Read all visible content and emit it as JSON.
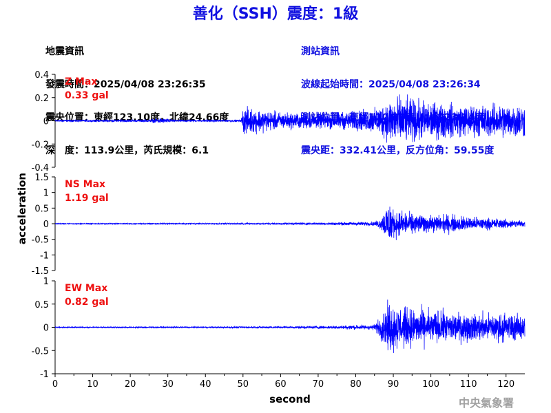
{
  "title": "善化（SSH）震度：1級",
  "colors": {
    "title": "#1010e0",
    "trace": "#0000ff",
    "peak_label": "#ee1111",
    "station_info": "#1010e0"
  },
  "quake_info": {
    "heading": "地震資訊",
    "time": "發震時間：2025/04/08 23:26:35",
    "location": "震央位置：東經123.10度，北緯24.66度",
    "depth_mag": "深　度：113.9公里，芮氏規模：6.1"
  },
  "station_info": {
    "heading": "測站資訊",
    "wave_start": "波線起始時間：2025/04/08 23:26:34",
    "location": "測站位置：東經120.29度，北緯23.14度",
    "distance": "震央距：332.41公里，反方位角：59.55度"
  },
  "agency": "中央氣象署",
  "chart_data": {
    "type": "line",
    "xlabel": "second",
    "ylabel": "acceleration",
    "xlim": [
      0,
      125
    ],
    "xticks": [
      0,
      10,
      20,
      30,
      40,
      50,
      60,
      70,
      80,
      90,
      100,
      110,
      120
    ],
    "panels": [
      {
        "name": "Z",
        "peak_label": "Z Max",
        "peak_value": "0.33 gal",
        "ylim": [
          -0.4,
          0.4
        ],
        "yticks": [
          -0.4,
          -0.2,
          0,
          0.2,
          0.4
        ],
        "ytick_labels": [
          "-0.4",
          "-0.2",
          "0",
          "0.2",
          "0.4"
        ],
        "envelope": [
          [
            0,
            0.012
          ],
          [
            10,
            0.012
          ],
          [
            25,
            0.015
          ],
          [
            28,
            0.035
          ],
          [
            30,
            0.025
          ],
          [
            32,
            0.012
          ],
          [
            49.5,
            0.012
          ],
          [
            50,
            0.16
          ],
          [
            55,
            0.13
          ],
          [
            60,
            0.1
          ],
          [
            70,
            0.09
          ],
          [
            80,
            0.11
          ],
          [
            85,
            0.14
          ],
          [
            88,
            0.22
          ],
          [
            90,
            0.3
          ],
          [
            95,
            0.25
          ],
          [
            100,
            0.22
          ],
          [
            110,
            0.18
          ],
          [
            120,
            0.2
          ],
          [
            125,
            0.2
          ]
        ]
      },
      {
        "name": "NS",
        "peak_label": "NS Max",
        "peak_value": "1.19 gal",
        "ylim": [
          -1.5,
          1.5
        ],
        "yticks": [
          -1.5,
          -1,
          -0.5,
          0,
          0.5,
          1,
          1.5
        ],
        "ytick_labels": [
          "-1.5",
          "-1",
          "-0.5",
          "0",
          "0.5",
          "1",
          "1.5"
        ],
        "envelope": [
          [
            0,
            0.02
          ],
          [
            40,
            0.025
          ],
          [
            60,
            0.04
          ],
          [
            75,
            0.06
          ],
          [
            85,
            0.09
          ],
          [
            87,
            0.3
          ],
          [
            88,
            0.8
          ],
          [
            89,
            1.1
          ],
          [
            90,
            0.6
          ],
          [
            95,
            0.45
          ],
          [
            100,
            0.35
          ],
          [
            105,
            0.4
          ],
          [
            110,
            0.3
          ],
          [
            120,
            0.2
          ],
          [
            125,
            0.15
          ]
        ]
      },
      {
        "name": "EW",
        "peak_label": "EW Max",
        "peak_value": "0.82 gal",
        "ylim": [
          -1,
          1
        ],
        "yticks": [
          -1,
          -0.5,
          0,
          0.5,
          1
        ],
        "ytick_labels": [
          "-1",
          "-0.5",
          "0",
          "0.5",
          "1"
        ],
        "envelope": [
          [
            0,
            0.015
          ],
          [
            40,
            0.02
          ],
          [
            60,
            0.03
          ],
          [
            75,
            0.05
          ],
          [
            85,
            0.08
          ],
          [
            87,
            0.4
          ],
          [
            89,
            0.75
          ],
          [
            92,
            0.6
          ],
          [
            96,
            0.55
          ],
          [
            100,
            0.5
          ],
          [
            105,
            0.45
          ],
          [
            110,
            0.4
          ],
          [
            120,
            0.42
          ],
          [
            125,
            0.35
          ]
        ]
      }
    ]
  }
}
